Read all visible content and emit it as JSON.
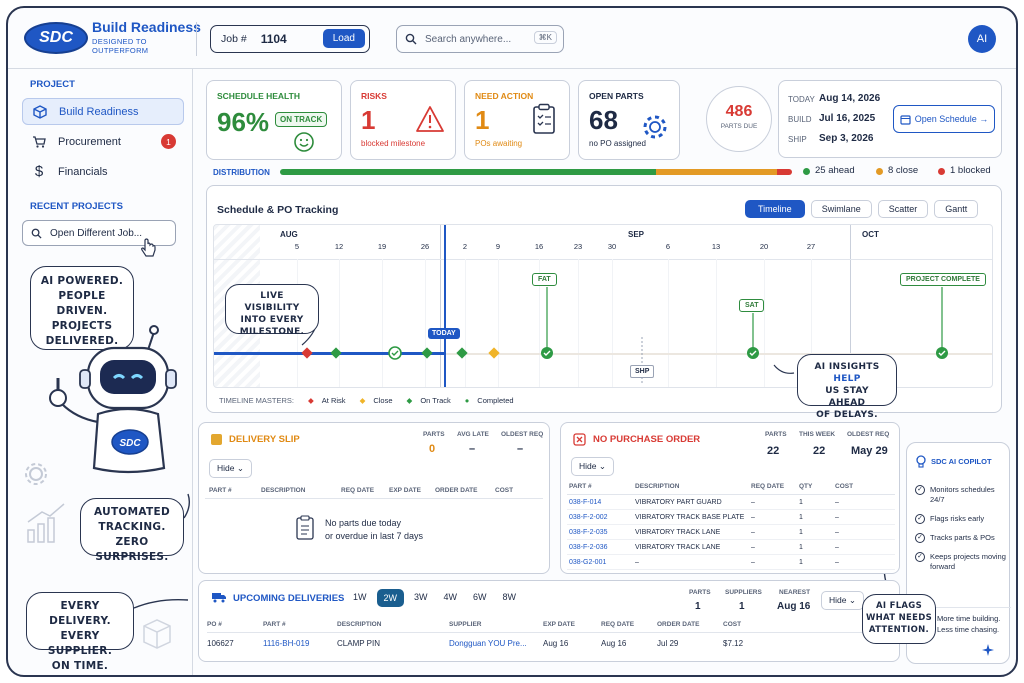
{
  "brand": {
    "logo": "SDC",
    "title": "Build Readiness",
    "tagline": "DESIGNED TO OUTPERFORM"
  },
  "job": {
    "label": "Job #",
    "value": "1104",
    "load_label": "Load"
  },
  "search": {
    "placeholder": "Search anywhere...",
    "shortcut": "⌘K"
  },
  "user": {
    "initials": "AI"
  },
  "sidebar": {
    "project_header": "PROJECT",
    "items": [
      {
        "label": "Build Readiness",
        "icon": "cube-icon"
      },
      {
        "label": "Procurement",
        "icon": "cart-icon",
        "badge": "1"
      },
      {
        "label": "Financials",
        "icon": "dollar-icon"
      }
    ],
    "recent_header": "RECENT PROJECTS",
    "open_different": "Open Different Job..."
  },
  "callouts": {
    "ai": [
      "AI POWERED.",
      "PEOPLE DRIVEN.",
      "PROJECTS",
      "DELIVERED."
    ],
    "tracking": [
      "AUTOMATED",
      "TRACKING.",
      "ZERO SURPRISES."
    ],
    "delivery": [
      "EVERY DELIVERY.",
      "EVERY SUPPLIER.",
      "ON TIME."
    ],
    "visibility": [
      "LIVE VISIBILITY",
      "INTO EVERY",
      "MILESTONE."
    ],
    "insights_a": "AI INSIGHTS ",
    "insights_b": "HELP",
    "insights_c": "US STAY AHEAD",
    "insights_d": "OF DELAYS.",
    "flags": [
      "AI FLAGS",
      "WHAT NEEDS",
      "ATTENTION."
    ]
  },
  "kpis": {
    "health": {
      "label": "SCHEDULE HEALTH",
      "value": "96%",
      "badge": "ON TRACK"
    },
    "risks": {
      "label": "RISKS",
      "value": "1",
      "sub": "blocked milestone"
    },
    "action": {
      "label": "NEED ACTION",
      "value": "1",
      "sub": "POs awaiting"
    },
    "open": {
      "label": "OPEN PARTS",
      "value": "68",
      "sub": "no PO assigned"
    },
    "parts_due": {
      "value": "486",
      "label": "PARTS DUE"
    }
  },
  "dates": {
    "today_label": "TODAY",
    "today": "Aug 14, 2026",
    "build_label": "BUILD",
    "build": "Jul 16, 2025",
    "ship_label": "SHIP",
    "ship": "Sep 3, 2026",
    "open_schedule": "Open Schedule →"
  },
  "distribution": {
    "label": "DISTRIBUTION",
    "ahead": "25 ahead",
    "close": "8 close",
    "blocked": "1 blocked",
    "ahead_n": 25,
    "close_n": 8,
    "blocked_n": 1,
    "colors": {
      "ahead": "#2e9a44",
      "close": "#e39a25",
      "blocked": "#d83a34"
    }
  },
  "schedule": {
    "title": "Schedule & PO Tracking",
    "views": [
      "Timeline",
      "Swimlane",
      "Scatter",
      "Gantt"
    ],
    "months": [
      "AUG",
      "SEP",
      "OCT"
    ],
    "days": [
      "5",
      "12",
      "19",
      "26",
      "2",
      "9",
      "16",
      "23",
      "30",
      "6",
      "13",
      "20",
      "27"
    ],
    "today": "TODAY",
    "milestones": {
      "fat": "FAT",
      "sat": "SAT",
      "complete": "PROJECT COMPLETE",
      "shp": "SHP"
    },
    "legend_label": "TIMELINE MASTERS:",
    "legend": [
      "At Risk",
      "Close",
      "On Track",
      "Completed"
    ]
  },
  "delivery_slip": {
    "title": "DELIVERY SLIP",
    "hide": "Hide",
    "stats": [
      {
        "label": "PARTS",
        "value": "0"
      },
      {
        "label": "AVG LATE",
        "value": "–"
      },
      {
        "label": "OLDEST REQ",
        "value": "–"
      }
    ],
    "columns": [
      "PART #",
      "DESCRIPTION",
      "REQ DATE",
      "EXP DATE",
      "ORDER DATE",
      "COST"
    ],
    "empty": [
      "No parts due today",
      "or overdue in last 7 days"
    ]
  },
  "no_po": {
    "title": "NO PURCHASE ORDER",
    "hide": "Hide",
    "stats": [
      {
        "label": "PARTS",
        "value": "22"
      },
      {
        "label": "THIS WEEK",
        "value": "22"
      },
      {
        "label": "OLDEST REQ",
        "value": "May 29"
      }
    ],
    "columns": [
      "PART #",
      "DESCRIPTION",
      "REQ DATE",
      "QTY",
      "COST"
    ],
    "rows": [
      {
        "part": "038-F-014",
        "desc": "VIBRATORY PART GUARD",
        "req": "–",
        "qty": "1",
        "cost": "–"
      },
      {
        "part": "038-F-2-002",
        "desc": "VIBRATORY TRACK BASE PLATE",
        "req": "–",
        "qty": "1",
        "cost": "–"
      },
      {
        "part": "038-F-2-035",
        "desc": "VIBRATORY TRACK LANE",
        "req": "–",
        "qty": "1",
        "cost": "–"
      },
      {
        "part": "038-F-2-036",
        "desc": "VIBRATORY TRACK LANE",
        "req": "–",
        "qty": "1",
        "cost": "–"
      },
      {
        "part": "038-G2-001",
        "desc": "–",
        "req": "–",
        "qty": "1",
        "cost": "–"
      }
    ]
  },
  "upcoming": {
    "title": "UPCOMING DELIVERIES",
    "ranges": [
      "1W",
      "2W",
      "3W",
      "4W",
      "6W",
      "8W"
    ],
    "stats": [
      {
        "label": "PARTS",
        "value": "1"
      },
      {
        "label": "SUPPLIERS",
        "value": "1"
      },
      {
        "label": "NEAREST",
        "value": "Aug 16"
      }
    ],
    "hide": "Hide",
    "columns": [
      "PO #",
      "PART #",
      "DESCRIPTION",
      "SUPPLIER",
      "EXP DATE",
      "REQ DATE",
      "ORDER DATE",
      "COST"
    ],
    "rows": [
      {
        "po": "106627",
        "part": "1116-BH-019",
        "desc": "CLAMP PIN",
        "supplier": "Dongguan YOU Pre...",
        "exp": "Aug 16",
        "req": "Aug 16",
        "order": "Jul 29",
        "cost": "$7.12"
      }
    ]
  },
  "copilot": {
    "title": "SDC AI COPILOT",
    "items": [
      "Monitors schedules 24/7",
      "Flags risks early",
      "Tracks parts & POs",
      "Keeps projects moving forward"
    ],
    "footer": [
      "More time building.",
      "Less time chasing."
    ]
  }
}
